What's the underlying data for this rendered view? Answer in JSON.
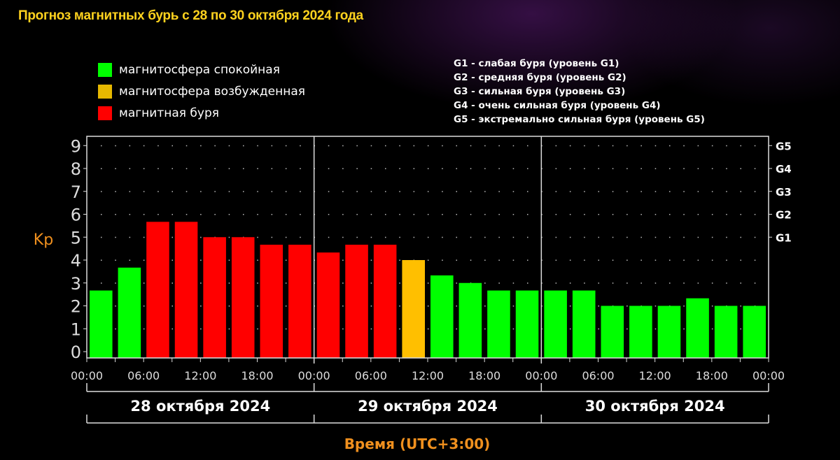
{
  "title": "Прогноз магнитных бурь с 28 по 30 октября 2024 года",
  "legend": [
    {
      "label": "магнитосфера спокойная",
      "color": "#00ff00"
    },
    {
      "label": "магнитосфера возбужденная",
      "color": "#ffbf00"
    },
    {
      "label": "магнитная буря",
      "color": "#ff0000"
    }
  ],
  "g_legend": [
    "G1 - слабая буря (уровень G1)",
    "G2 - средняя буря (уровень G2)",
    "G3 - сильная буря (уровень G3)",
    "G4 - очень сильная буря (уровень G4)",
    "G5 - экстремально сильная буря (уровень G5)"
  ],
  "colors": {
    "quiet": "#00ff00",
    "active": "#ffbf00",
    "storm": "#ff0000",
    "axis_label": "#f0901e"
  },
  "chart_data": {
    "type": "bar",
    "title": "Прогноз магнитных бурь с 28 по 30 октября 2024 года",
    "ylabel": "Kp",
    "xlabel": "Время (UTC+3:00)",
    "ylim": [
      0,
      9
    ],
    "yticks": [
      "0",
      "1",
      "2",
      "3",
      "4",
      "5",
      "6",
      "7",
      "8",
      "9"
    ],
    "g_levels": [
      {
        "label": "G1",
        "kp": 5
      },
      {
        "label": "G2",
        "kp": 6
      },
      {
        "label": "G3",
        "kp": 7
      },
      {
        "label": "G4",
        "kp": 8
      },
      {
        "label": "G5",
        "kp": 9
      }
    ],
    "xtick_labels": [
      "00:00",
      "06:00",
      "12:00",
      "18:00",
      "00:00",
      "06:00",
      "12:00",
      "18:00",
      "00:00",
      "06:00",
      "12:00",
      "18:00",
      "00:00"
    ],
    "days": [
      "28 октября 2024",
      "29 октября 2024",
      "30 октября 2024"
    ],
    "interval_hours": 3,
    "values": [
      2.67,
      3.67,
      5.67,
      5.67,
      5.0,
      5.0,
      4.67,
      4.67,
      4.33,
      4.67,
      4.67,
      4.0,
      3.33,
      3.0,
      2.67,
      2.67,
      2.67,
      2.67,
      2.0,
      2.0,
      2.0,
      2.33,
      2.0,
      2.0
    ],
    "levels": [
      "quiet",
      "quiet",
      "storm",
      "storm",
      "storm",
      "storm",
      "storm",
      "storm",
      "storm",
      "storm",
      "storm",
      "active",
      "quiet",
      "quiet",
      "quiet",
      "quiet",
      "quiet",
      "quiet",
      "quiet",
      "quiet",
      "quiet",
      "quiet",
      "quiet",
      "quiet"
    ],
    "grid": "dotted"
  }
}
